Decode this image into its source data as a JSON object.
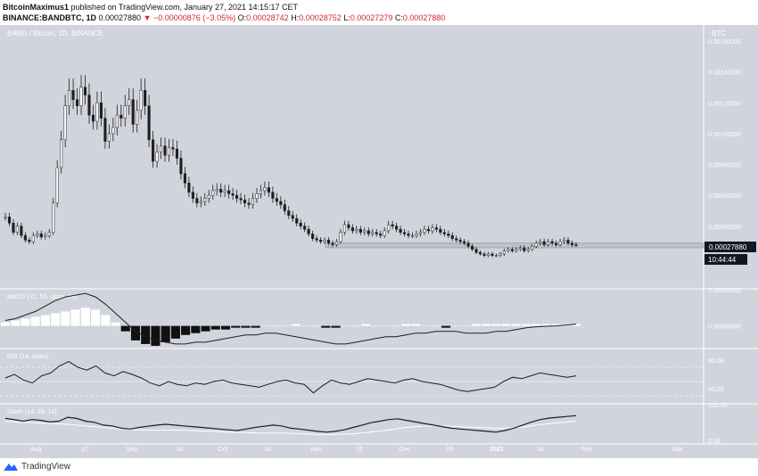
{
  "header": {
    "author": "BitcoinMaximus1",
    "published_text": "published on TradingView.com, January 27, 2021 14:15:17 CET",
    "symbol": "BINANCE:BANDBTC, 1D",
    "last": "0.00027880",
    "change": "▼ −0.00000876 (−3.05%)",
    "ohlc": {
      "o_label": "O:",
      "o": "0.00028742",
      "h_label": "H:",
      "h": "0.00028752",
      "l_label": "L:",
      "l": "0.00027279",
      "c_label": "C:",
      "c": "0.00027880"
    }
  },
  "footer": {
    "logo_text": "TradingView"
  },
  "colors": {
    "background": "#d1d4dc",
    "candle": "#1e1e1e",
    "highlight_box": "#bfc2c9",
    "price_tag_bg": "#131722",
    "price_tag_text": "#ffffff",
    "indicator_line": "#1e1e1e",
    "signal_line": "#ffffff",
    "pane_separator": "#ffffff"
  },
  "chart_data": {
    "type": "candlestick",
    "title": "BAND / Bitcoin, 1D, BINANCE",
    "currency_label": "BTC",
    "price_axis": {
      "min": 0.0,
      "max": 0.0016,
      "ticks": [
        "0.00160000",
        "0.00140000",
        "0.00120000",
        "0.00100000",
        "0.00080000",
        "0.00060000",
        "0.00040000"
      ],
      "tick_values": [
        0.0016,
        0.0014,
        0.0012,
        0.001,
        0.0008,
        0.0006,
        0.0004
      ]
    },
    "time_axis": {
      "labels": [
        "Aug",
        "17",
        "Sep",
        "16",
        "Oct",
        "16",
        "Nov",
        "16",
        "Dec",
        "16",
        "2021",
        "16",
        "Feb",
        "Mar"
      ],
      "bold": [
        "2021"
      ]
    },
    "last_price": "0.00027880",
    "countdown": "10:44:44",
    "support_zone": {
      "low": 0.00026,
      "high": 0.00029
    },
    "daily_close_btc": [
      0.00046,
      0.00042,
      0.00036,
      0.0004,
      0.00034,
      0.00031,
      0.0003,
      0.00034,
      0.00035,
      0.00033,
      0.00034,
      0.00036,
      0.00055,
      0.00078,
      0.00096,
      0.00118,
      0.00128,
      0.00122,
      0.00118,
      0.0013,
      0.00125,
      0.00112,
      0.00108,
      0.0012,
      0.0011,
      0.00095,
      0.001,
      0.00104,
      0.00112,
      0.0011,
      0.00118,
      0.00122,
      0.00106,
      0.00115,
      0.00128,
      0.00118,
      0.00096,
      0.00082,
      0.00088,
      0.00092,
      0.00086,
      0.00091,
      0.0009,
      0.00084,
      0.00074,
      0.00068,
      0.00062,
      0.00058,
      0.00055,
      0.00056,
      0.00058,
      0.0006,
      0.00063,
      0.00064,
      0.00062,
      0.00063,
      0.00061,
      0.0006,
      0.00058,
      0.00057,
      0.00055,
      0.00054,
      0.00058,
      0.00061,
      0.00063,
      0.00065,
      0.00062,
      0.00058,
      0.00056,
      0.00054,
      0.0005,
      0.00047,
      0.00045,
      0.00042,
      0.0004,
      0.00038,
      0.00035,
      0.00032,
      0.00031,
      0.0003,
      0.00031,
      0.00029,
      0.00028,
      0.0003,
      0.00036,
      0.00041,
      0.00039,
      0.00037,
      0.00038,
      0.00036,
      0.00037,
      0.00035,
      0.00036,
      0.00035,
      0.00034,
      0.00037,
      0.00041,
      0.0004,
      0.00038,
      0.00036,
      0.00035,
      0.00034,
      0.00034,
      0.00035,
      0.00036,
      0.00038,
      0.00037,
      0.00039,
      0.00038,
      0.00036,
      0.00035,
      0.00034,
      0.00032,
      0.00031,
      0.0003,
      0.00029,
      0.00027,
      0.00025,
      0.00023,
      0.00022,
      0.00021,
      0.00022,
      0.00021,
      0.00021,
      0.00022,
      0.00024,
      0.00025,
      0.00024,
      0.00025,
      0.00026,
      0.00024,
      0.00025,
      0.00027,
      0.00029,
      0.0003,
      0.00028,
      0.0003,
      0.00029,
      0.00028,
      0.0003,
      0.00031,
      0.00029,
      0.00028,
      0.0002788
    ],
    "indicators": [
      {
        "name": "MACD (21, 50, close, 24)",
        "axis_ticks": [
          "0.00020000",
          "0.00000000"
        ],
        "macd_line_btc": [
          3e-05,
          4e-05,
          6e-05,
          8e-05,
          0.00011,
          0.00014,
          0.00016,
          0.00017,
          0.00018,
          0.00016,
          0.00012,
          7e-05,
          2e-05,
          -3e-05,
          -6e-05,
          -8e-05,
          -9e-05,
          -0.0001,
          -0.0001,
          -9e-05,
          -9e-05,
          -8e-05,
          -7e-05,
          -6e-05,
          -5e-05,
          -5e-05,
          -4e-05,
          -4e-05,
          -5e-05,
          -6e-05,
          -7e-05,
          -8e-05,
          -9e-05,
          -0.0001,
          -0.0001,
          -9e-05,
          -8e-05,
          -7e-05,
          -6e-05,
          -6e-05,
          -5e-05,
          -4e-05,
          -4e-05,
          -3e-05,
          -3e-05,
          -3e-05,
          -4e-05,
          -4e-05,
          -4e-05,
          -3e-05,
          -3e-05,
          -2e-05,
          -1e-05,
          -5e-06,
          -2e-06,
          0.0,
          5e-06,
          1e-05
        ],
        "histogram_btc": [
          2e-05,
          3e-05,
          4e-05,
          5e-05,
          6e-05,
          7e-05,
          8e-05,
          9e-05,
          0.0001,
          9e-05,
          6e-05,
          2e-05,
          -3e-05,
          -8e-05,
          -0.0001,
          -0.00011,
          -9e-05,
          -7e-05,
          -5e-05,
          -4e-05,
          -3e-05,
          -2e-05,
          -2e-05,
          -1e-05,
          -1e-05,
          -1e-05,
          0.0,
          0.0,
          0.0,
          1e-05,
          0.0,
          0.0,
          -1e-05,
          -1e-05,
          0.0,
          0.0,
          1e-05,
          0.0,
          0.0,
          0.0,
          1e-05,
          1e-05,
          0.0,
          0.0,
          -1e-05,
          0.0,
          0.0,
          1e-05,
          1e-05,
          1e-05,
          1e-05,
          1e-05,
          1e-05,
          1e-05,
          1e-05,
          1e-05,
          1e-05,
          1e-05
        ]
      },
      {
        "name": "RSI (14, close)",
        "axis_ticks": [
          "80.00",
          "40.00"
        ],
        "levels": [
          70,
          50,
          30
        ],
        "values": [
          55,
          60,
          52,
          48,
          58,
          62,
          72,
          78,
          70,
          66,
          72,
          62,
          58,
          64,
          60,
          55,
          48,
          44,
          50,
          46,
          44,
          48,
          46,
          50,
          52,
          48,
          46,
          44,
          42,
          46,
          50,
          52,
          48,
          46,
          34,
          44,
          52,
          48,
          46,
          50,
          54,
          52,
          50,
          48,
          52,
          54,
          50,
          48,
          46,
          42,
          38,
          36,
          38,
          40,
          42,
          50,
          56,
          54,
          58,
          62,
          60,
          58,
          56,
          58
        ]
      },
      {
        "name": "Stoch (14, 28, 14)",
        "axis_ticks": [
          "100.00",
          "0.00"
        ],
        "k_values": [
          65,
          62,
          58,
          62,
          60,
          56,
          58,
          68,
          65,
          58,
          55,
          48,
          46,
          40,
          38,
          42,
          45,
          48,
          50,
          48,
          46,
          44,
          42,
          40,
          38,
          36,
          34,
          38,
          42,
          45,
          48,
          46,
          40,
          38,
          35,
          32,
          30,
          32,
          36,
          42,
          48,
          54,
          58,
          62,
          64,
          60,
          56,
          52,
          48,
          44,
          40,
          38,
          36,
          34,
          32,
          30,
          34,
          40,
          48,
          56,
          62,
          66,
          68,
          70,
          72
        ],
        "d_values": [
          58,
          56,
          55,
          54,
          53,
          52,
          51,
          50,
          48,
          46,
          44,
          42,
          40,
          38,
          37,
          36,
          35,
          35,
          35,
          35,
          35,
          34,
          33,
          32,
          31,
          30,
          29,
          29,
          28,
          28,
          28,
          28,
          27,
          26,
          25,
          24,
          24,
          24,
          25,
          26,
          28,
          30,
          33,
          36,
          39,
          42,
          44,
          45,
          46,
          46,
          45,
          44,
          43,
          42,
          41,
          40,
          40,
          41,
          43,
          46,
          49,
          52,
          54,
          56,
          58
        ]
      }
    ]
  }
}
